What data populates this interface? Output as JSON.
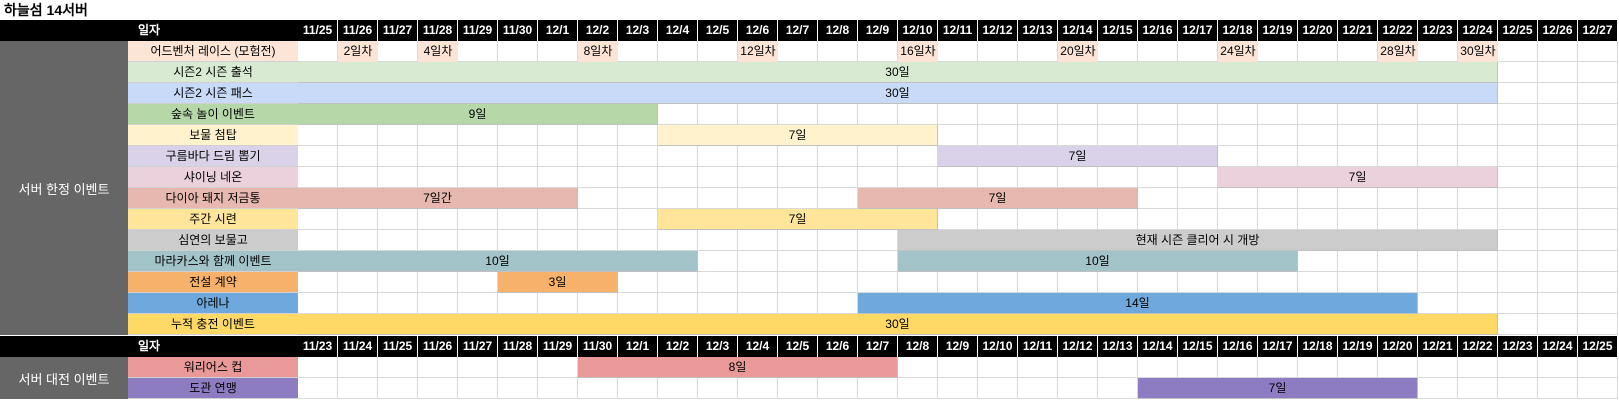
{
  "title": "하늘섬 14서버",
  "colors": {
    "header_bg": "#000000",
    "group_bg": "#666666",
    "adventure": "#fce4d6",
    "attendance": "#d9ead3",
    "pass": "#c9daf8",
    "forest": "#b6d7a8",
    "treasure_tower": "#fff2cc",
    "cloud_draw": "#d9d2e9",
    "shining_neon": "#ead1dc",
    "diamond_piggy": "#e6b8af",
    "weekly_trial": "#ffe599",
    "abyss": "#cccccc",
    "marakas": "#a2c4c9",
    "legend_contract": "#f6b26b",
    "arena": "#6fa8dc",
    "cumulative_charge": "#ffd966",
    "warriors_cup": "#ea9999",
    "dogwan_alliance": "#8e7cc3"
  },
  "section1": {
    "header_label": "일자",
    "dates": [
      "11/25",
      "11/26",
      "11/27",
      "11/28",
      "11/29",
      "11/30",
      "12/1",
      "12/2",
      "12/3",
      "12/4",
      "12/5",
      "12/6",
      "12/7",
      "12/8",
      "12/9",
      "12/10",
      "12/11",
      "12/12",
      "12/13",
      "12/14",
      "12/15",
      "12/16",
      "12/17",
      "12/18",
      "12/19",
      "12/20",
      "12/21",
      "12/22",
      "12/23",
      "12/24",
      "12/25",
      "12/26",
      "12/27"
    ],
    "group_label": "서버 한정 이벤트",
    "rows": [
      {
        "name": "어드벤처 레이스 (모험전)",
        "color": "adventure",
        "markers": [
          {
            "col": 1,
            "label": "2일차"
          },
          {
            "col": 3,
            "label": "4일차"
          },
          {
            "col": 7,
            "label": "8일차"
          },
          {
            "col": 11,
            "label": "12일차"
          },
          {
            "col": 15,
            "label": "16일차"
          },
          {
            "col": 19,
            "label": "20일차"
          },
          {
            "col": 23,
            "label": "24일차"
          },
          {
            "col": 27,
            "label": "28일차"
          },
          {
            "col": 29,
            "label": "30일차"
          }
        ]
      },
      {
        "name": "시즌2 시즌 출석",
        "color": "attendance",
        "bars": [
          {
            "start": 0,
            "span": 30,
            "label": "30일"
          }
        ]
      },
      {
        "name": "시즌2 시즌 패스",
        "color": "pass",
        "bars": [
          {
            "start": 0,
            "span": 30,
            "label": "30일"
          }
        ]
      },
      {
        "name": "숲속 놀이 이벤트",
        "color": "forest",
        "bars": [
          {
            "start": 0,
            "span": 9,
            "label": "9일"
          }
        ]
      },
      {
        "name": "보물 첨탑",
        "color": "treasure_tower",
        "bars": [
          {
            "start": 9,
            "span": 7,
            "label": "7일"
          }
        ]
      },
      {
        "name": "구름바다 드림 뽑기",
        "color": "cloud_draw",
        "bars": [
          {
            "start": 16,
            "span": 7,
            "label": "7일"
          }
        ]
      },
      {
        "name": "샤이닝 네온",
        "color": "shining_neon",
        "bars": [
          {
            "start": 23,
            "span": 7,
            "label": "7일"
          }
        ]
      },
      {
        "name": "다이아 돼지 저금통",
        "color": "diamond_piggy",
        "bars": [
          {
            "start": 0,
            "span": 7,
            "label": "7일간"
          },
          {
            "start": 14,
            "span": 7,
            "label": "7일"
          }
        ]
      },
      {
        "name": "주간 시련",
        "color": "weekly_trial",
        "bars": [
          {
            "start": 9,
            "span": 7,
            "label": "7일"
          }
        ]
      },
      {
        "name": "심연의 보물고",
        "color": "abyss",
        "bars": [
          {
            "start": 15,
            "span": 15,
            "label": "현재 시즌 클리어 시 개방"
          }
        ]
      },
      {
        "name": "마라카스와 함께 이벤트",
        "color": "marakas",
        "bars": [
          {
            "start": 0,
            "span": 10,
            "label": "10일"
          },
          {
            "start": 15,
            "span": 10,
            "label": "10일"
          }
        ]
      },
      {
        "name": "전설 계약",
        "color": "legend_contract",
        "bars": [
          {
            "start": 5,
            "span": 3,
            "label": "3일"
          }
        ]
      },
      {
        "name": "아레나",
        "color": "arena",
        "bars": [
          {
            "start": 14,
            "span": 14,
            "label": "14일"
          }
        ]
      },
      {
        "name": "누적 충전 이벤트",
        "color": "cumulative_charge",
        "bars": [
          {
            "start": 0,
            "span": 30,
            "label": "30일"
          }
        ]
      }
    ]
  },
  "section2": {
    "header_label": "일자",
    "dates": [
      "11/23",
      "11/24",
      "11/25",
      "11/26",
      "11/27",
      "11/28",
      "11/29",
      "11/30",
      "12/1",
      "12/2",
      "12/3",
      "12/4",
      "12/5",
      "12/6",
      "12/7",
      "12/8",
      "12/9",
      "12/10",
      "12/11",
      "12/12",
      "12/13",
      "12/14",
      "12/15",
      "12/16",
      "12/17",
      "12/18",
      "12/19",
      "12/20",
      "12/21",
      "12/22",
      "12/23",
      "12/24",
      "12/25"
    ],
    "group_label": "서버 대전 이벤트",
    "rows": [
      {
        "name": "워리어스 컵",
        "color": "warriors_cup",
        "bars": [
          {
            "start": 7,
            "span": 8,
            "label": "8일"
          }
        ]
      },
      {
        "name": "도관 연맹",
        "color": "dogwan_alliance",
        "bars": [
          {
            "start": 21,
            "span": 7,
            "label": "7일"
          }
        ]
      }
    ]
  }
}
